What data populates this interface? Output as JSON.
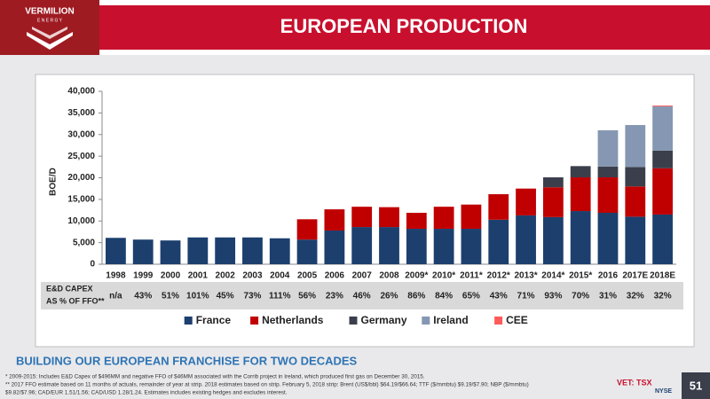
{
  "header": {
    "logo": "VERMILION",
    "logo_sub": "E N E R G Y",
    "title": "EUROPEAN PRODUCTION"
  },
  "chart_data": {
    "type": "bar",
    "stacked": true,
    "y_label": "BOE/D",
    "categories": [
      "1998",
      "1999",
      "2000",
      "2001",
      "2002",
      "2003",
      "2004",
      "2005",
      "2006",
      "2007",
      "2008",
      "2009*",
      "2010*",
      "2011*",
      "2012*",
      "2013*",
      "2014*",
      "2015*",
      "2016",
      "2017E",
      "2018E"
    ],
    "series": [
      {
        "name": "France",
        "color": "#1c3f6e",
        "values": [
          6100,
          5700,
          5500,
          6200,
          6200,
          6200,
          6000,
          5700,
          7800,
          8600,
          8600,
          8200,
          8200,
          8200,
          10300,
          11300,
          10900,
          12300,
          11900,
          11000,
          11500
        ]
      },
      {
        "name": "Netherlands",
        "color": "#c00000",
        "values": [
          null,
          null,
          null,
          null,
          null,
          null,
          null,
          4700,
          4900,
          4700,
          4600,
          3700,
          5100,
          5600,
          5900,
          6200,
          6900,
          7800,
          8200,
          7000,
          10700
        ]
      },
      {
        "name": "Germany",
        "color": "#3b3f4c",
        "values": [
          null,
          null,
          null,
          null,
          null,
          null,
          null,
          null,
          null,
          null,
          null,
          null,
          null,
          null,
          null,
          null,
          2300,
          2600,
          2500,
          4500,
          4100
        ]
      },
      {
        "name": "Ireland",
        "color": "#8597b2",
        "values": [
          null,
          null,
          null,
          null,
          null,
          null,
          null,
          null,
          null,
          null,
          null,
          null,
          null,
          null,
          null,
          null,
          null,
          null,
          8400,
          9700,
          10200
        ]
      },
      {
        "name": "CEE",
        "color": "#ff5a5a",
        "values": [
          null,
          null,
          null,
          null,
          null,
          null,
          null,
          null,
          null,
          null,
          null,
          null,
          null,
          null,
          null,
          null,
          null,
          null,
          null,
          null,
          200
        ]
      }
    ],
    "ylim": [
      0,
      40000
    ],
    "yticks": [
      0,
      {
        "value": 5000,
        "label": "5,000"
      },
      {
        "value": 10000,
        "label": "10,000"
      },
      {
        "value": 15000,
        "label": "15,000"
      },
      {
        "value": 20000,
        "label": "20,000"
      },
      {
        "value": 25000,
        "label": "25,000"
      },
      {
        "value": 30000,
        "label": "30,000"
      },
      {
        "value": 35000,
        "label": "35,000"
      },
      {
        "value": 40000,
        "label": "40,000"
      }
    ],
    "grid": false,
    "legend": "bottom",
    "capex": {
      "label": [
        "E&D CAPEX",
        "AS % OF FFO**"
      ],
      "values": [
        "n/a",
        "43%",
        "51%",
        "101%",
        "45%",
        "73%",
        "111%",
        "56%",
        "23%",
        "46%",
        "26%",
        "86%",
        "84%",
        "65%",
        "43%",
        "71%",
        "93%",
        "70%",
        "31%",
        "32%",
        "32%"
      ]
    }
  },
  "subtitle": "BUILDING OUR EUROPEAN FRANCHISE FOR TWO DECADES",
  "footnotes": [
    "* 2009-2015: Includes E&D Capex of $496MM and negative FFO of $46MM associated with the Corrib project in Ireland, which produced first gas on December 30, 2015.",
    "** 2017 FFO estimate based on 11 months of actuals, remainder of year at strip. 2018 estimates based on strip. February 5, 2018 strip: Brent (US$/bbl) $64.19/$66.64; TTF ($/mmbtu) $9.19/$7.90; NBP ($/mmbtu)",
    "$9.82/$7.96; CAD/EUR 1.51/1.56; CAD/USD 1.28/1.24. Estimates includes existing hedges and excludes interest."
  ],
  "footer": {
    "ticker": "VET: TSX",
    "exchange": "NYSE",
    "page": "51"
  }
}
